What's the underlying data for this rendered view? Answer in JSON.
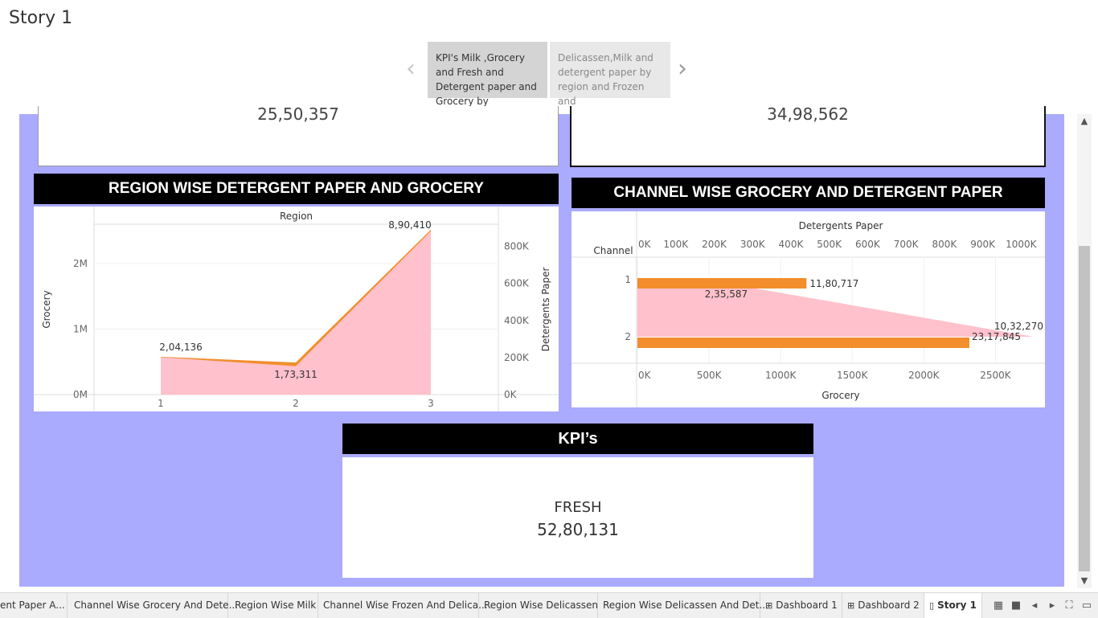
{
  "story": {
    "title": "Story 1",
    "prev_arrow": "‹",
    "next_arrow": "›",
    "points": [
      {
        "label": "KPI's Milk ,Grocery and Fresh and Detergent paper and Grocery by"
      },
      {
        "label": "Delicassen,Milk and detergent paper by region and Frozen and"
      }
    ]
  },
  "kpis": {
    "top_left_value": "25,50,357",
    "top_right_value": "34,98,562",
    "header": "KPI’s",
    "fresh_label": "FRESH",
    "fresh_value": "52,80,131"
  },
  "region_sheet": {
    "title": "REGION WISE DETERGENT PAPER AND GROCERY"
  },
  "channel_sheet": {
    "title": "CHANNEL WISE GROCERY AND DETERGENT PAPER"
  },
  "chart_data": [
    {
      "type": "area",
      "title": "REGION WISE DETERGENT PAPER AND GROCERY",
      "column_header": "Region",
      "xlabel": "Region",
      "categories": [
        "1",
        "2",
        "3"
      ],
      "y_left_label": "Grocery",
      "y_left_ticks": [
        "0M",
        "1M",
        "2M"
      ],
      "y_left_lim": [
        0,
        2600000
      ],
      "y_right_label": "Detergents Paper",
      "y_right_ticks": [
        "0K",
        "200K",
        "400K",
        "600K",
        "800K"
      ],
      "y_right_lim": [
        0,
        920000
      ],
      "series": [
        {
          "name": "Grocery",
          "axis": "left",
          "color": "#f28e2b",
          "values": [
            570037,
            433274,
            2495251
          ]
        },
        {
          "name": "Detergents Paper",
          "axis": "right",
          "color": "#ffbec8",
          "values": [
            204136,
            173311,
            890410
          ]
        }
      ],
      "data_labels": [
        "2,04,136",
        "1,73,311",
        "8,90,410"
      ],
      "legend": "none"
    },
    {
      "type": "bar",
      "orientation": "horizontal",
      "title": "CHANNEL WISE GROCERY AND DETERGENT PAPER",
      "row_header": "Channel",
      "categories": [
        "1",
        "2"
      ],
      "top_axis_label": "Detergents Paper",
      "top_axis_ticks": [
        "0K",
        "100K",
        "200K",
        "300K",
        "400K",
        "500K",
        "600K",
        "700K",
        "800K",
        "900K",
        "1000K"
      ],
      "top_axis_lim": [
        0,
        1060000
      ],
      "bottom_axis_label": "Grocery",
      "bottom_axis_ticks": [
        "0K",
        "500K",
        "1000K",
        "1500K",
        "2000K",
        "2500K"
      ],
      "bottom_axis_lim": [
        0,
        2840000
      ],
      "series": [
        {
          "name": "Grocery",
          "axis": "bottom",
          "color": "#f28e2b",
          "values": [
            1180717,
            2317845
          ]
        },
        {
          "name": "Detergents Paper",
          "axis": "top",
          "color": "#ffbec8",
          "values": [
            235587,
            1032270
          ]
        }
      ],
      "data_labels": {
        "Grocery": [
          "11,80,717",
          "23,17,845"
        ],
        "Detergents Paper": [
          "2,35,587",
          "10,32,270"
        ]
      },
      "legend": "none"
    }
  ],
  "tabs": [
    {
      "label": "ent Paper A..."
    },
    {
      "label": "Channel Wise Grocery And Dete..."
    },
    {
      "label": "Region Wise Milk"
    },
    {
      "label": "Channel Wise Frozen And Delica..."
    },
    {
      "label": "Region Wise Delicassen"
    },
    {
      "label": "Region Wise Delicassen And Det..."
    },
    {
      "label": "Dashboard 1",
      "icon": "dashboard-icon"
    },
    {
      "label": "Dashboard 2",
      "icon": "dashboard-icon"
    },
    {
      "label": "Story 1",
      "icon": "story-icon",
      "active": true
    }
  ],
  "bottom_controls": [
    "show-sheet-sorter-icon",
    "show-filmstrip-icon",
    "prev-sheet-icon",
    "next-sheet-icon",
    "fit-screen-icon",
    "presentation-mode-icon"
  ]
}
